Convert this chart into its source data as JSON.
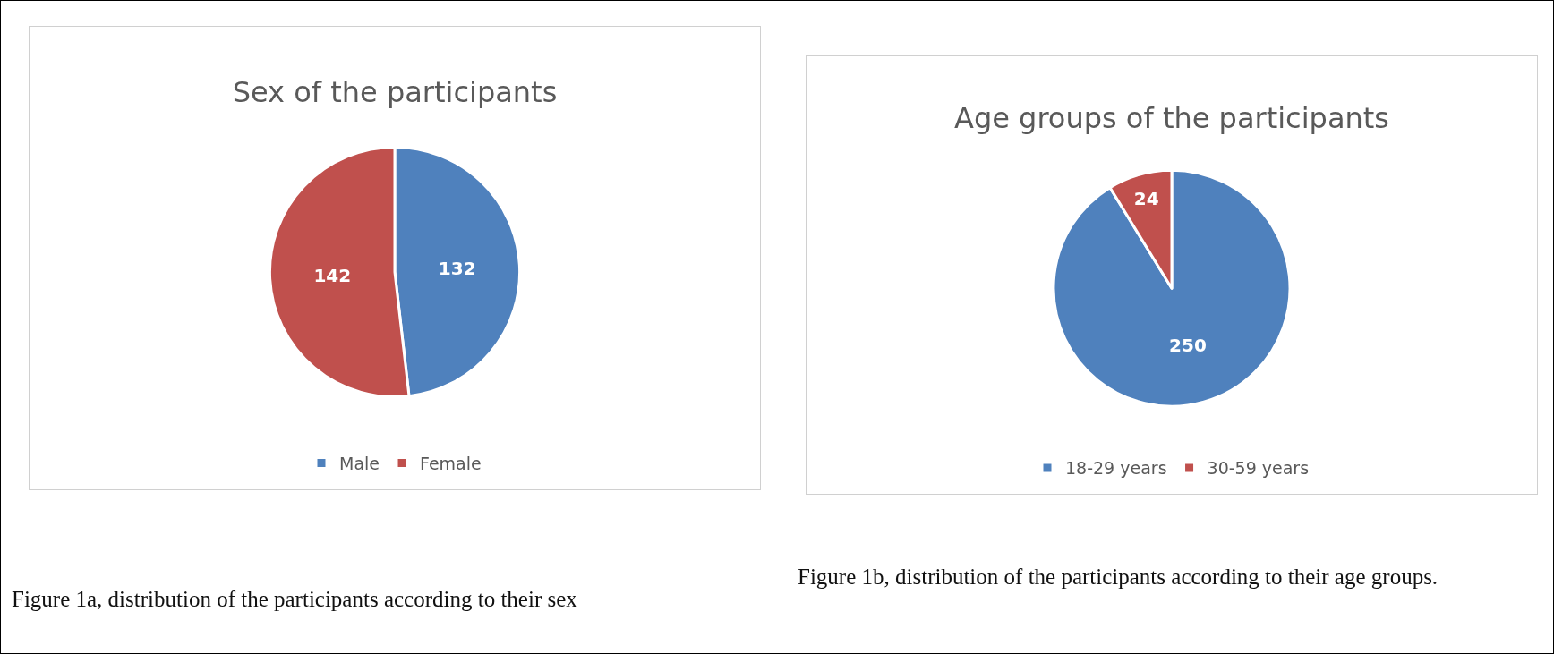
{
  "chart_data": [
    {
      "type": "pie",
      "title": "Sex of the participants",
      "categories": [
        "Male",
        "Female"
      ],
      "values": [
        132,
        142
      ],
      "colors": [
        "#4f81bd",
        "#c0504d"
      ],
      "data_labels": true,
      "legend": "bottom",
      "annotations": [
        "Figure 1a, distribution of the participants according to their sex"
      ]
    },
    {
      "type": "pie",
      "title": "Age groups of the participants",
      "categories": [
        "18-29 years",
        "30-59 years"
      ],
      "values": [
        250,
        24
      ],
      "colors": [
        "#4f81bd",
        "#c0504d"
      ],
      "data_labels": true,
      "legend": "bottom",
      "annotations": [
        "Figure 1b, distribution of the participants according to their age groups."
      ]
    }
  ]
}
